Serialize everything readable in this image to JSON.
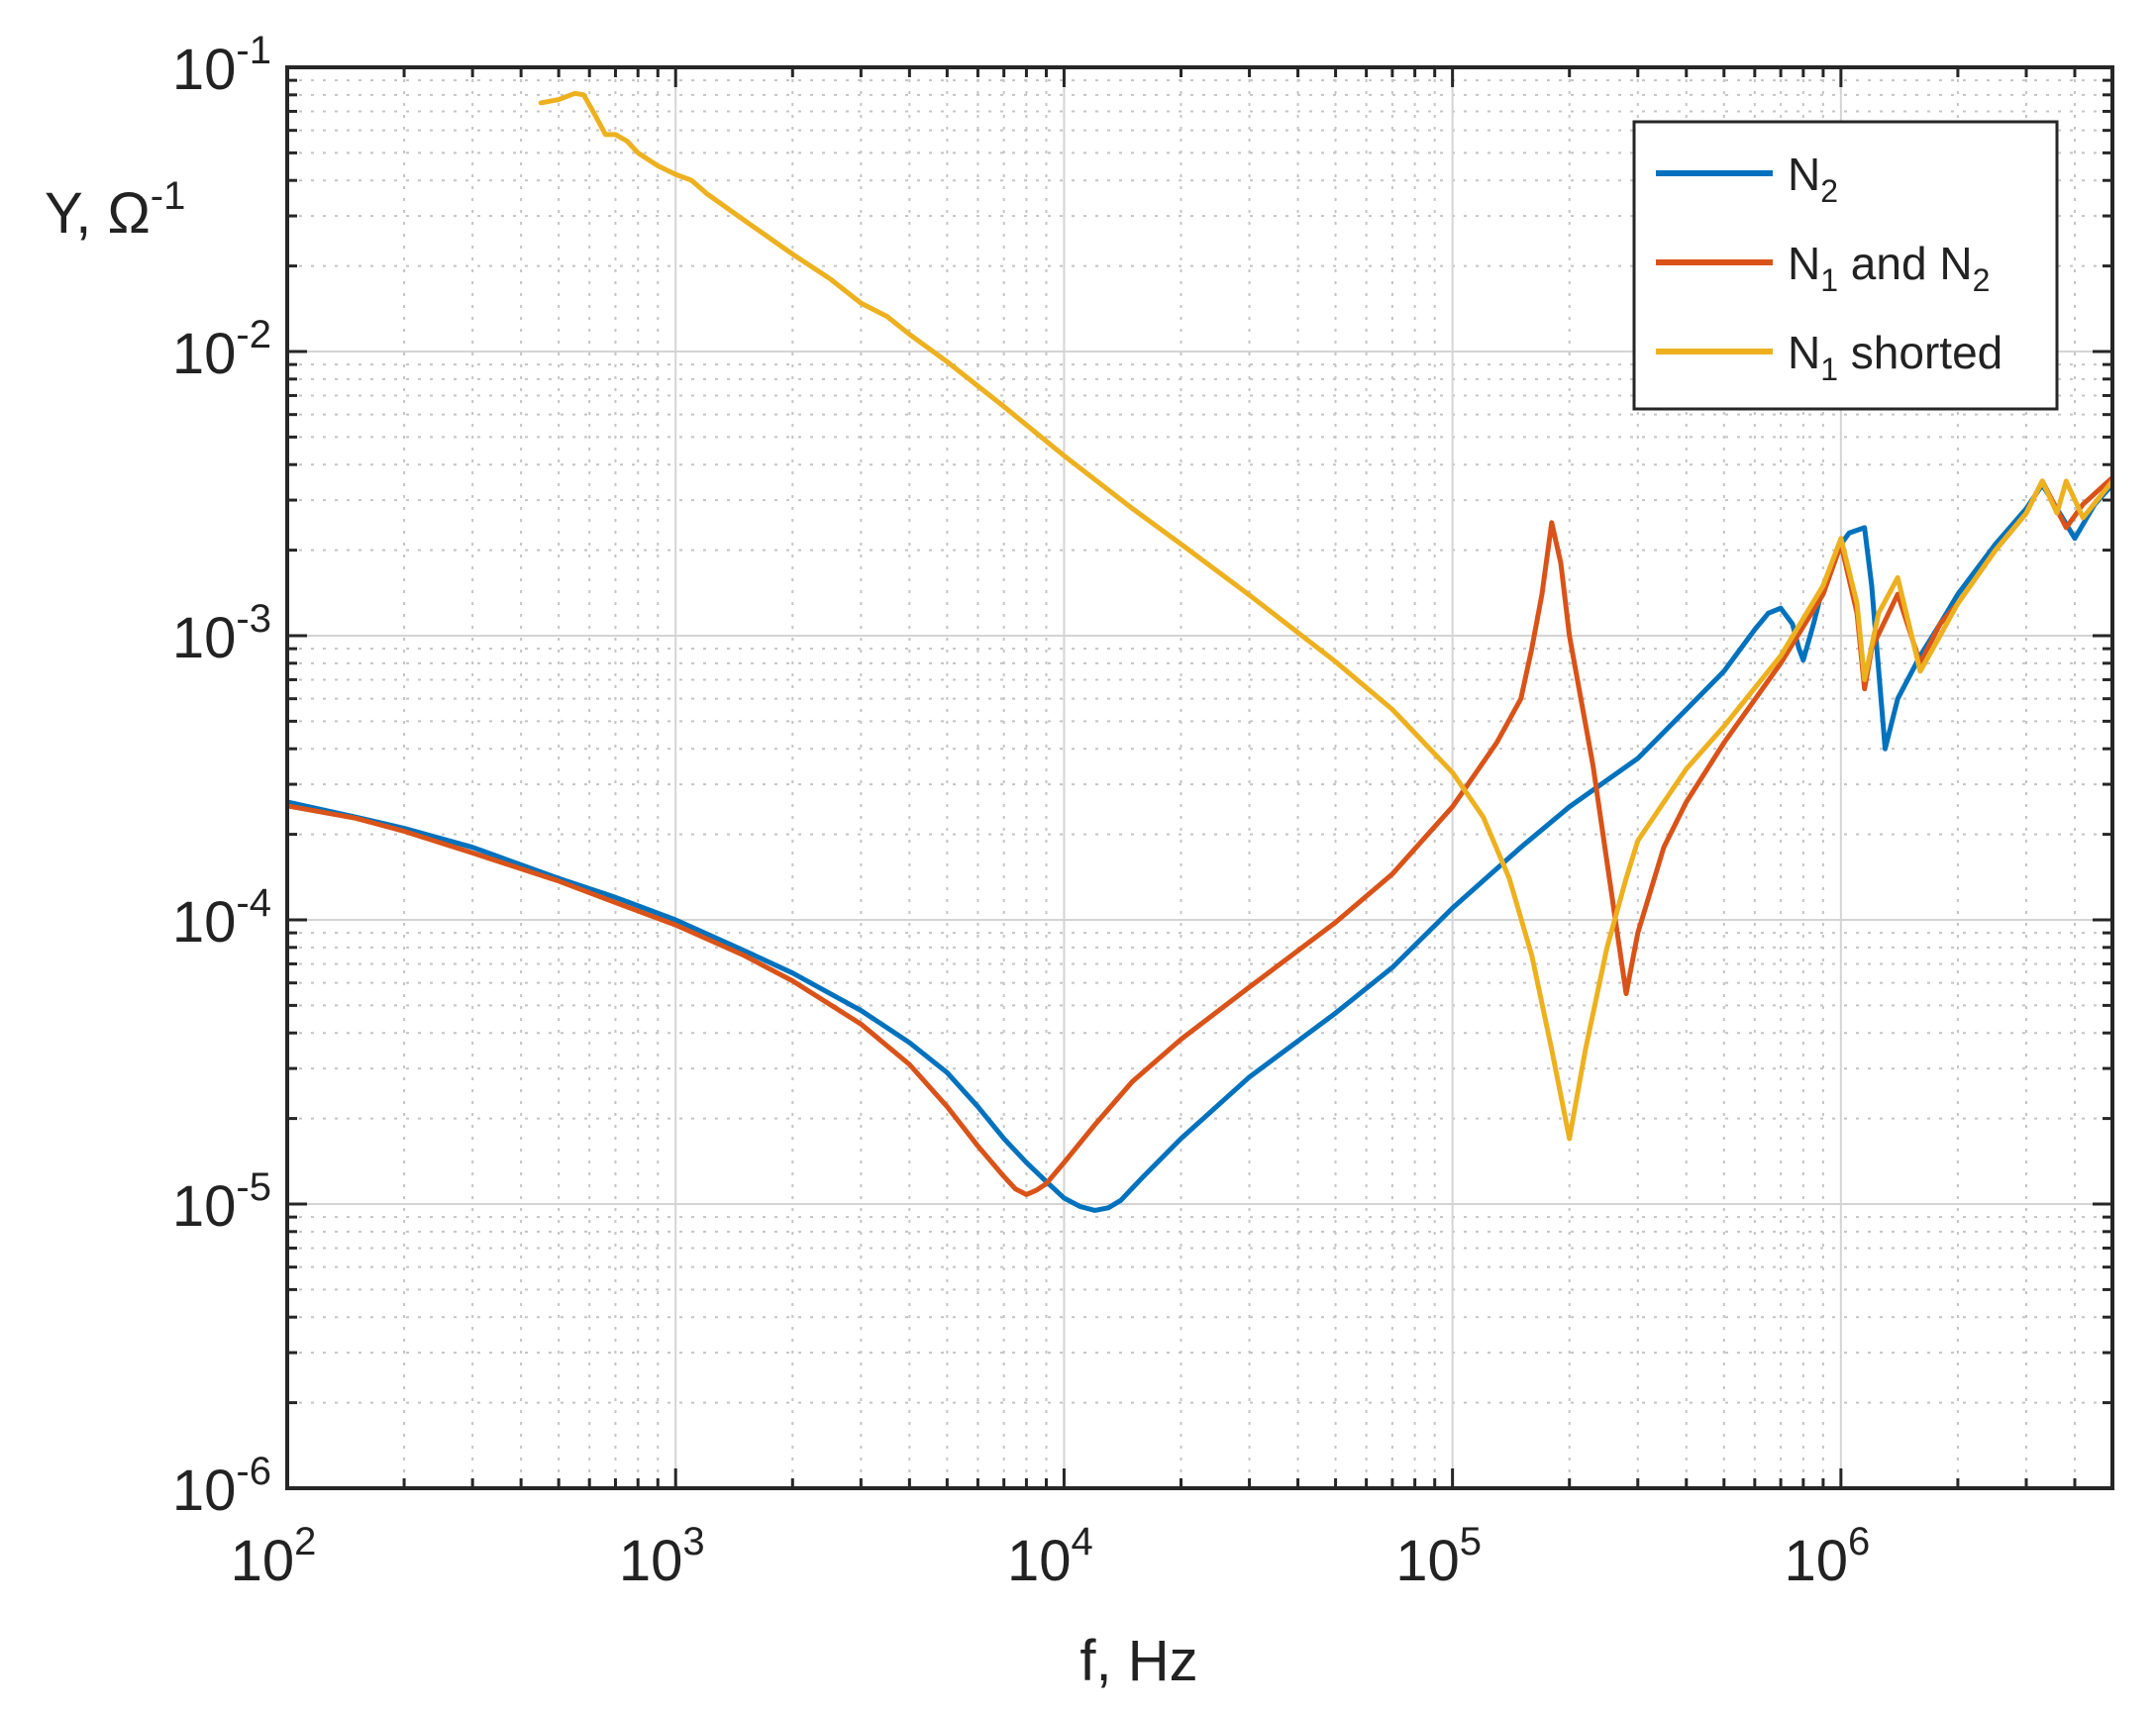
{
  "chart_data": {
    "type": "line",
    "title": "",
    "xlabel": "f, Hz",
    "ylabel": "Y, Ω⁻¹",
    "ylabel_base": "Y,  Ω",
    "ylabel_exp": "-1",
    "xscale": "log",
    "yscale": "log",
    "xlim": [
      100,
      5000000
    ],
    "ylim": [
      1e-06,
      0.1
    ],
    "grid": true,
    "minor_grid": true,
    "legend_position": "top-right",
    "x_ticks": [
      {
        "value": 100,
        "base": "10",
        "exp": "2"
      },
      {
        "value": 1000,
        "base": "10",
        "exp": "3"
      },
      {
        "value": 10000,
        "base": "10",
        "exp": "4"
      },
      {
        "value": 100000,
        "base": "10",
        "exp": "5"
      },
      {
        "value": 1000000,
        "base": "10",
        "exp": "6"
      }
    ],
    "y_ticks": [
      {
        "value": 1e-06,
        "base": "10",
        "exp": "-6"
      },
      {
        "value": 1e-05,
        "base": "10",
        "exp": "-5"
      },
      {
        "value": 0.0001,
        "base": "10",
        "exp": "-4"
      },
      {
        "value": 0.001,
        "base": "10",
        "exp": "-3"
      },
      {
        "value": 0.01,
        "base": "10",
        "exp": "-2"
      },
      {
        "value": 0.1,
        "base": "10",
        "exp": "-1"
      }
    ],
    "series": [
      {
        "name": "N2",
        "legend_parts": [
          {
            "t": "N"
          },
          {
            "t": "2",
            "sub": true
          }
        ],
        "color": "#0072BD",
        "points": [
          [
            100,
            0.00026
          ],
          [
            150,
            0.00023
          ],
          [
            200,
            0.00021
          ],
          [
            300,
            0.00018
          ],
          [
            500,
            0.00014
          ],
          [
            700,
            0.00012
          ],
          [
            1000,
            0.0001
          ],
          [
            1500,
            7.8e-05
          ],
          [
            2000,
            6.5e-05
          ],
          [
            3000,
            4.8e-05
          ],
          [
            4000,
            3.7e-05
          ],
          [
            5000,
            2.9e-05
          ],
          [
            6000,
            2.2e-05
          ],
          [
            7000,
            1.7e-05
          ],
          [
            8000,
            1.4e-05
          ],
          [
            9000,
            1.2e-05
          ],
          [
            10000,
            1.05e-05
          ],
          [
            11000,
            9.8e-06
          ],
          [
            12000,
            9.5e-06
          ],
          [
            13000,
            9.7e-06
          ],
          [
            14000,
            1.03e-05
          ],
          [
            16000,
            1.25e-05
          ],
          [
            20000,
            1.7e-05
          ],
          [
            30000,
            2.8e-05
          ],
          [
            50000,
            4.7e-05
          ],
          [
            70000,
            6.8e-05
          ],
          [
            100000,
            0.00011
          ],
          [
            150000,
            0.00018
          ],
          [
            200000,
            0.00025
          ],
          [
            300000,
            0.00037
          ],
          [
            400000,
            0.00055
          ],
          [
            500000,
            0.00075
          ],
          [
            600000,
            0.00105
          ],
          [
            650000,
            0.0012
          ],
          [
            700000,
            0.00125
          ],
          [
            750000,
            0.0011
          ],
          [
            780000,
            0.0009
          ],
          [
            800000,
            0.00082
          ],
          [
            850000,
            0.0011
          ],
          [
            900000,
            0.0015
          ],
          [
            1000000,
            0.0021
          ],
          [
            1050000,
            0.0023
          ],
          [
            1150000,
            0.0024
          ],
          [
            1200000,
            0.0015
          ],
          [
            1300000,
            0.0004
          ],
          [
            1400000,
            0.0006
          ],
          [
            1600000,
            0.00085
          ],
          [
            1800000,
            0.0011
          ],
          [
            2000000,
            0.0014
          ],
          [
            2500000,
            0.0021
          ],
          [
            3000000,
            0.0028
          ],
          [
            3300000,
            0.0034
          ],
          [
            3600000,
            0.0028
          ],
          [
            4000000,
            0.0022
          ],
          [
            4500000,
            0.0029
          ],
          [
            5000000,
            0.0034
          ]
        ]
      },
      {
        "name": "N1 and N2",
        "legend_parts": [
          {
            "t": "N"
          },
          {
            "t": "1",
            "sub": true
          },
          {
            "t": " and N"
          },
          {
            "t": "2",
            "sub": true
          }
        ],
        "color": "#D95319",
        "points": [
          [
            100,
            0.000252
          ],
          [
            150,
            0.000228
          ],
          [
            200,
            0.000205
          ],
          [
            300,
            0.000172
          ],
          [
            500,
            0.000137
          ],
          [
            700,
            0.000115
          ],
          [
            1000,
            9.6e-05
          ],
          [
            1500,
            7.5e-05
          ],
          [
            2000,
            6.1e-05
          ],
          [
            3000,
            4.3e-05
          ],
          [
            4000,
            3.1e-05
          ],
          [
            5000,
            2.2e-05
          ],
          [
            6000,
            1.6e-05
          ],
          [
            7000,
            1.25e-05
          ],
          [
            7500,
            1.13e-05
          ],
          [
            8000,
            1.08e-05
          ],
          [
            8500,
            1.12e-05
          ],
          [
            9000,
            1.18e-05
          ],
          [
            10000,
            1.4e-05
          ],
          [
            12000,
            1.9e-05
          ],
          [
            15000,
            2.7e-05
          ],
          [
            20000,
            3.8e-05
          ],
          [
            30000,
            5.8e-05
          ],
          [
            50000,
            9.8e-05
          ],
          [
            70000,
            0.000145
          ],
          [
            100000,
            0.00025
          ],
          [
            130000,
            0.00042
          ],
          [
            150000,
            0.0006
          ],
          [
            160000,
            0.0009
          ],
          [
            170000,
            0.0014
          ],
          [
            180000,
            0.0025
          ],
          [
            190000,
            0.0018
          ],
          [
            200000,
            0.001
          ],
          [
            230000,
            0.00035
          ],
          [
            260000,
            0.00011
          ],
          [
            280000,
            5.5e-05
          ],
          [
            300000,
            9e-05
          ],
          [
            350000,
            0.00018
          ],
          [
            400000,
            0.00026
          ],
          [
            500000,
            0.00042
          ],
          [
            700000,
            0.0008
          ],
          [
            900000,
            0.0014
          ],
          [
            1000000,
            0.0021
          ],
          [
            1100000,
            0.0012
          ],
          [
            1150000,
            0.00065
          ],
          [
            1200000,
            0.0009
          ],
          [
            1400000,
            0.0014
          ],
          [
            1600000,
            0.0008
          ],
          [
            1800000,
            0.0011
          ],
          [
            2000000,
            0.0013
          ],
          [
            2500000,
            0.002
          ],
          [
            3000000,
            0.0027
          ],
          [
            3300000,
            0.0035
          ],
          [
            3800000,
            0.0024
          ],
          [
            4200000,
            0.0029
          ],
          [
            5000000,
            0.0036
          ]
        ]
      },
      {
        "name": "N1 shorted",
        "legend_parts": [
          {
            "t": "N"
          },
          {
            "t": "1",
            "sub": true
          },
          {
            "t": " shorted"
          }
        ],
        "color": "#EDB120",
        "points": [
          [
            450,
            0.075
          ],
          [
            500,
            0.077
          ],
          [
            550,
            0.081
          ],
          [
            580,
            0.08
          ],
          [
            620,
            0.068
          ],
          [
            660,
            0.058
          ],
          [
            700,
            0.058
          ],
          [
            750,
            0.055
          ],
          [
            800,
            0.05
          ],
          [
            900,
            0.045
          ],
          [
            1000,
            0.042
          ],
          [
            1100,
            0.04
          ],
          [
            1200,
            0.036
          ],
          [
            1500,
            0.029
          ],
          [
            2000,
            0.022
          ],
          [
            2500,
            0.018
          ],
          [
            3000,
            0.0148
          ],
          [
            3500,
            0.0133
          ],
          [
            4000,
            0.0115
          ],
          [
            5000,
            0.0092
          ],
          [
            7000,
            0.0064
          ],
          [
            10000,
            0.0043
          ],
          [
            15000,
            0.0028
          ],
          [
            20000,
            0.0021
          ],
          [
            30000,
            0.00139
          ],
          [
            50000,
            0.00081
          ],
          [
            70000,
            0.00055
          ],
          [
            100000,
            0.00033
          ],
          [
            120000,
            0.00023
          ],
          [
            140000,
            0.00014
          ],
          [
            160000,
            7.5e-05
          ],
          [
            180000,
            3.5e-05
          ],
          [
            200000,
            1.7e-05
          ],
          [
            220000,
            3.5e-05
          ],
          [
            250000,
            8e-05
          ],
          [
            280000,
            0.00014
          ],
          [
            300000,
            0.00019
          ],
          [
            400000,
            0.00034
          ],
          [
            500000,
            0.00048
          ],
          [
            700000,
            0.00085
          ],
          [
            900000,
            0.0015
          ],
          [
            1000000,
            0.0022
          ],
          [
            1100000,
            0.0013
          ],
          [
            1150000,
            0.0007
          ],
          [
            1250000,
            0.0012
          ],
          [
            1400000,
            0.0016
          ],
          [
            1600000,
            0.00075
          ],
          [
            1800000,
            0.001
          ],
          [
            2000000,
            0.0013
          ],
          [
            2500000,
            0.002
          ],
          [
            3000000,
            0.0027
          ],
          [
            3300000,
            0.0035
          ],
          [
            3600000,
            0.0027
          ],
          [
            3800000,
            0.0035
          ],
          [
            4200000,
            0.0026
          ],
          [
            5000000,
            0.0035
          ]
        ]
      }
    ]
  }
}
